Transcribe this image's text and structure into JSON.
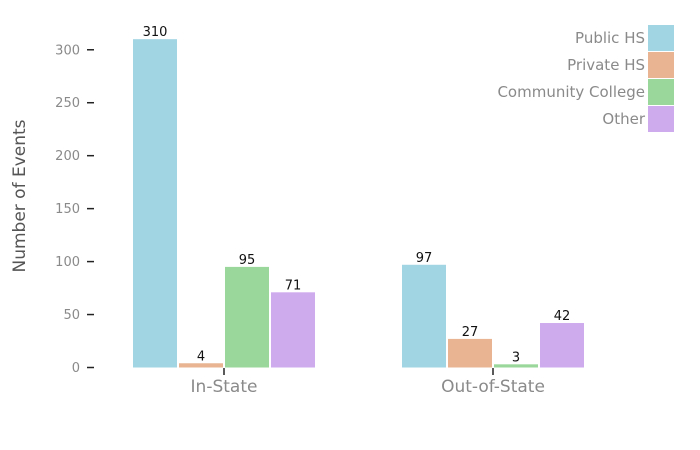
{
  "chart_data": {
    "type": "bar",
    "categories": [
      "In-State",
      "Out-of-State"
    ],
    "series": [
      {
        "name": "Public HS",
        "values": [
          310,
          97
        ],
        "color": "#a2d5e3"
      },
      {
        "name": "Private HS",
        "values": [
          4,
          27
        ],
        "color": "#e8b491"
      },
      {
        "name": "Community College",
        "values": [
          95,
          3
        ],
        "color": "#99d79a"
      },
      {
        "name": "Other",
        "values": [
          71,
          42
        ],
        "color": "#ceabed"
      }
    ],
    "title": "",
    "xlabel": "",
    "ylabel": "Number of Events",
    "ylim": [
      0,
      330
    ],
    "yticks": [
      0,
      50,
      100,
      150,
      200,
      250,
      300
    ],
    "grid": false,
    "legend_position": "top-right"
  }
}
